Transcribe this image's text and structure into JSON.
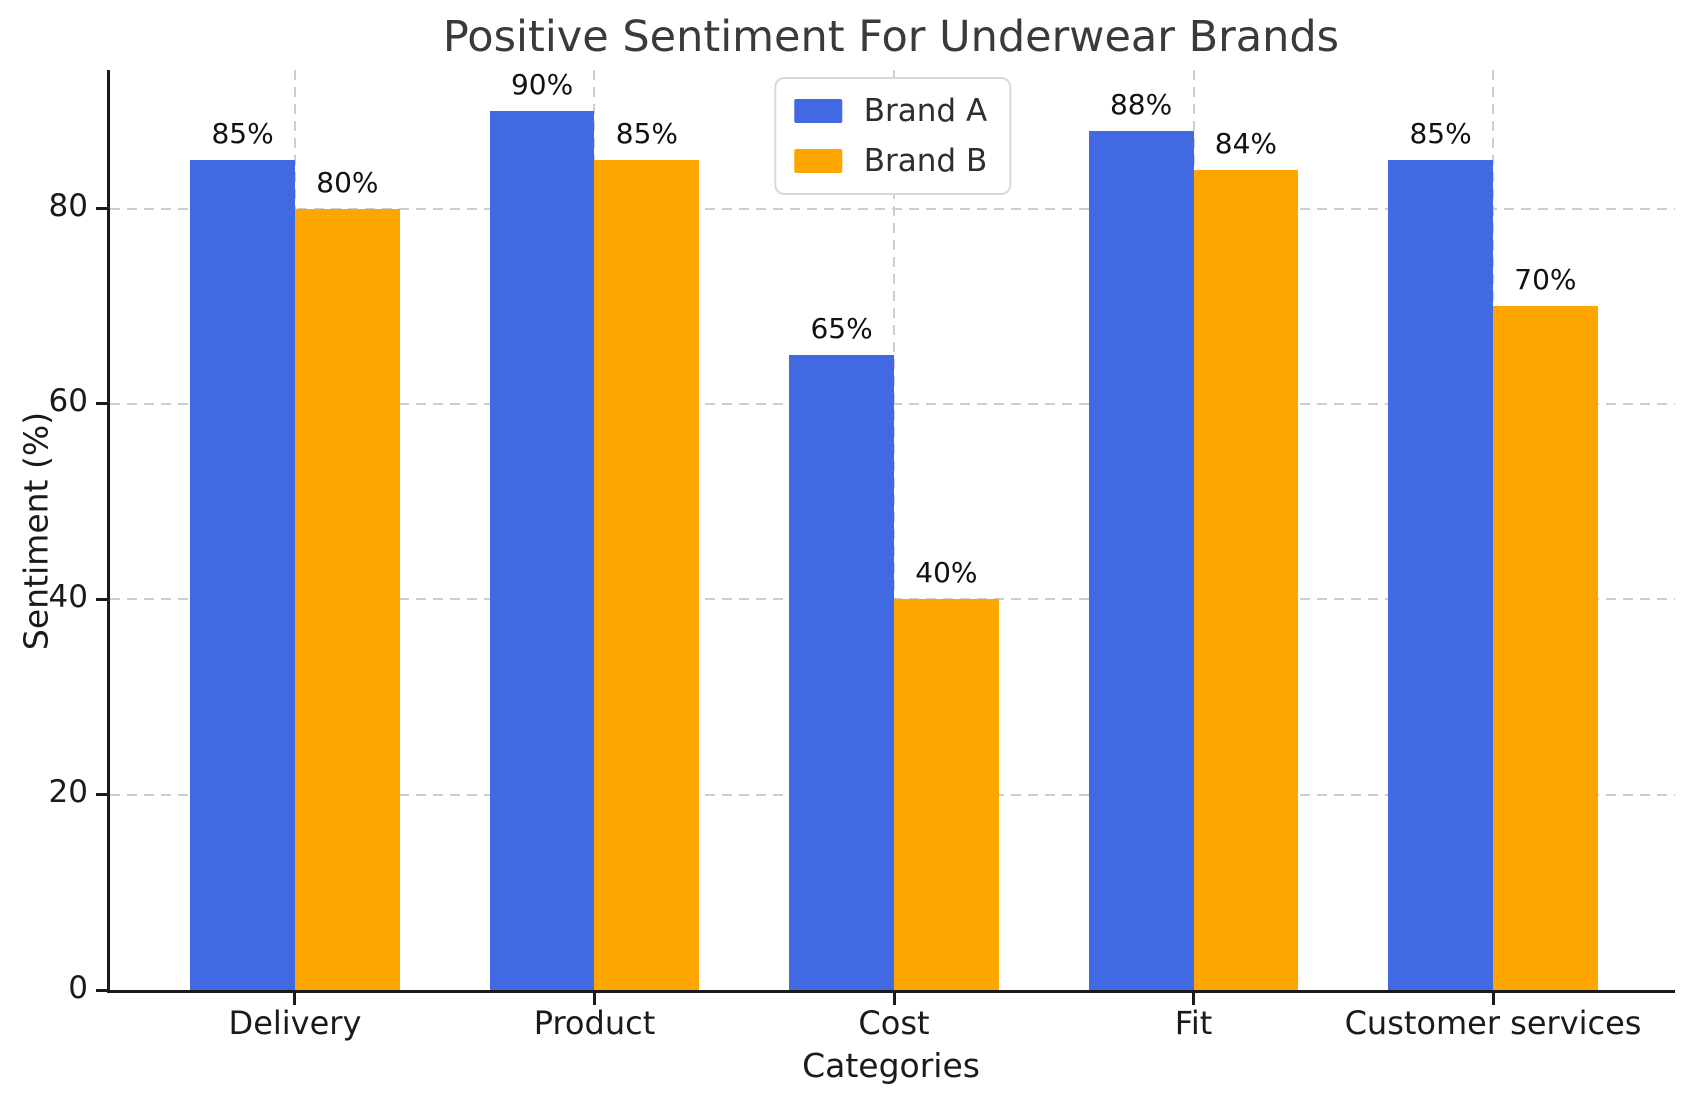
{
  "chart_data": {
    "type": "bar",
    "title": "Positive Sentiment For Underwear Brands",
    "xlabel": "Categories",
    "ylabel": "Sentiment (%)",
    "categories": [
      "Delivery",
      "Product",
      "Cost",
      "Fit",
      "Customer services"
    ],
    "series": [
      {
        "name": "Brand A",
        "color": "#4169E1",
        "values": [
          85,
          90,
          65,
          88,
          85
        ],
        "labels": [
          "85%",
          "90%",
          "65%",
          "88%",
          "85%"
        ]
      },
      {
        "name": "Brand B",
        "color": "#FFA500",
        "values": [
          80,
          85,
          40,
          84,
          70
        ],
        "labels": [
          "80%",
          "85%",
          "40%",
          "84%",
          "70%"
        ]
      }
    ],
    "yticks": [
      "0",
      "20",
      "40",
      "60",
      "80"
    ],
    "ylim": [
      0,
      94.5
    ],
    "grid": "dashed",
    "grid_color": "#cdcdcd",
    "legend_position": "upper center",
    "legend_entries": [
      "Brand A",
      "Brand B"
    ]
  }
}
